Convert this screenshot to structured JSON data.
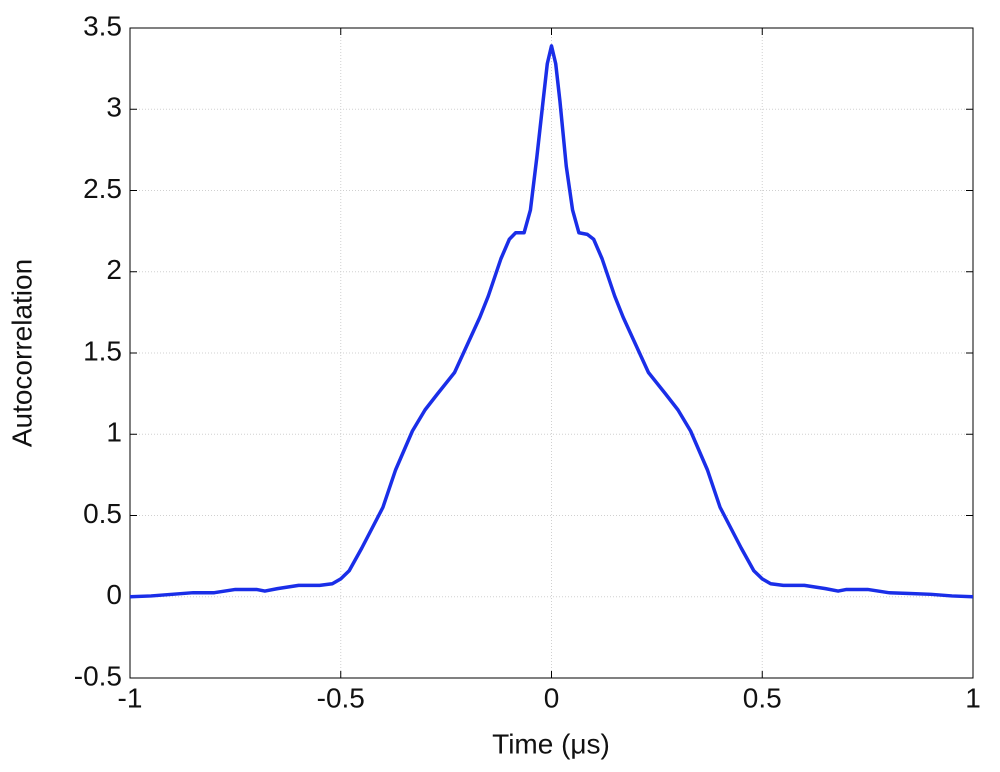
{
  "chart_data": {
    "type": "line",
    "xlabel": "Time (μs)",
    "ylabel": "Autocorrelation",
    "xlim": [
      -1,
      1
    ],
    "xticks": [
      -1,
      -0.5,
      0,
      0.5,
      1
    ],
    "ylim": [
      -0.5,
      3.5
    ],
    "yticks": [
      -0.5,
      0,
      0.5,
      1,
      1.5,
      2,
      2.5,
      3,
      3.5
    ],
    "grid": true,
    "series": [
      {
        "color": "#1a2ee8",
        "x": [
          -1,
          -0.95,
          -0.9,
          -0.85,
          -0.8,
          -0.75,
          -0.7,
          -0.68,
          -0.65,
          -0.6,
          -0.55,
          -0.52,
          -0.5,
          -0.48,
          -0.45,
          -0.42,
          -0.4,
          -0.37,
          -0.33,
          -0.3,
          -0.27,
          -0.23,
          -0.2,
          -0.17,
          -0.15,
          -0.12,
          -0.1,
          -0.085,
          -0.065,
          -0.05,
          -0.035,
          -0.02,
          -0.01,
          0,
          0.01,
          0.02,
          0.035,
          0.05,
          0.065,
          0.085,
          0.1,
          0.12,
          0.15,
          0.17,
          0.2,
          0.23,
          0.27,
          0.3,
          0.33,
          0.37,
          0.4,
          0.42,
          0.45,
          0.48,
          0.5,
          0.52,
          0.55,
          0.6,
          0.65,
          0.68,
          0.7,
          0.75,
          0.8,
          0.85,
          0.9,
          0.95,
          1
        ],
        "values": [
          0,
          0.005,
          0.015,
          0.025,
          0.025,
          0.045,
          0.045,
          0.035,
          0.05,
          0.07,
          0.07,
          0.08,
          0.11,
          0.16,
          0.3,
          0.45,
          0.55,
          0.78,
          1.02,
          1.15,
          1.25,
          1.38,
          1.55,
          1.72,
          1.85,
          2.08,
          2.2,
          2.24,
          2.24,
          2.38,
          2.7,
          3.05,
          3.28,
          3.39,
          3.28,
          3.05,
          2.65,
          2.38,
          2.24,
          2.23,
          2.2,
          2.08,
          1.85,
          1.72,
          1.55,
          1.38,
          1.25,
          1.15,
          1.02,
          0.78,
          0.55,
          0.45,
          0.3,
          0.16,
          0.11,
          0.08,
          0.07,
          0.07,
          0.05,
          0.035,
          0.045,
          0.045,
          0.025,
          0.02,
          0.015,
          0.005,
          0
        ]
      }
    ]
  }
}
